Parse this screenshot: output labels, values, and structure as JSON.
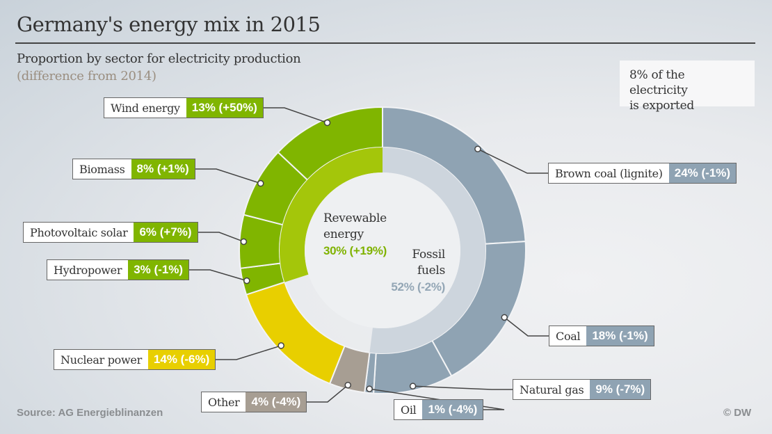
{
  "header": {
    "title": "Germany's energy mix in 2015",
    "subtitle": "Proportion by sector for electricity production",
    "subnote": "(difference from 2014)"
  },
  "export_note": {
    "line1": "8% of the electricity",
    "line2": "is exported"
  },
  "footer": {
    "source": "Source: AG Energieblinanzen",
    "credit": "© DW"
  },
  "colors": {
    "renewable": "#80b500",
    "renewable_inner": "#a4c60a",
    "nuclear": "#e8cf00",
    "other": "#a79e93",
    "fossil": "#8fa3b3",
    "fossil_inner": "#cdd5dd",
    "fossil_text": "#93a6b5",
    "renewable_text": "#7fb200"
  },
  "chart_data": {
    "type": "pie",
    "subtype": "donut",
    "title": "Germany's energy mix in 2015",
    "subtitle": "Proportion by sector for electricity production (difference from 2014)",
    "unit": "%",
    "slices": [
      {
        "name": "Brown coal (lignite)",
        "value": 24,
        "change": "-1%",
        "value_label": "24% (-1%)",
        "group": "fossil"
      },
      {
        "name": "Coal",
        "value": 18,
        "change": "-1%",
        "value_label": "18% (-1%)",
        "group": "fossil"
      },
      {
        "name": "Natural gas",
        "value": 9,
        "change": "-7%",
        "value_label": "9% (-7%)",
        "group": "fossil"
      },
      {
        "name": "Oil",
        "value": 1,
        "change": "-4%",
        "value_label": "1% (-4%)",
        "group": "fossil"
      },
      {
        "name": "Other",
        "value": 4,
        "change": "-4%",
        "value_label": "4% (-4%)",
        "group": "other"
      },
      {
        "name": "Nuclear power",
        "value": 14,
        "change": "-6%",
        "value_label": "14% (-6%)",
        "group": "nuclear"
      },
      {
        "name": "Hydropower",
        "value": 3,
        "change": "-1%",
        "value_label": "3% (-1%)",
        "group": "renewable"
      },
      {
        "name": "Photovoltaic solar",
        "value": 6,
        "change": "+7%",
        "value_label": "6% (+7%)",
        "group": "renewable"
      },
      {
        "name": "Biomass",
        "value": 8,
        "change": "+1%",
        "value_label": "8% (+1%)",
        "group": "renewable"
      },
      {
        "name": "Wind energy",
        "value": 13,
        "change": "+50%",
        "value_label": "13% (+50%)",
        "group": "renewable"
      }
    ],
    "groups": [
      {
        "name": "Revewable energy",
        "line1": "Revewable",
        "line2": "energy",
        "value": 30,
        "change": "+19%",
        "value_label": "30% (+19%)"
      },
      {
        "name": "Fossil fuels",
        "line1": "Fossil",
        "line2": "fuels",
        "value": 52,
        "change": "-2%",
        "value_label": "52% (-2%)"
      }
    ]
  }
}
